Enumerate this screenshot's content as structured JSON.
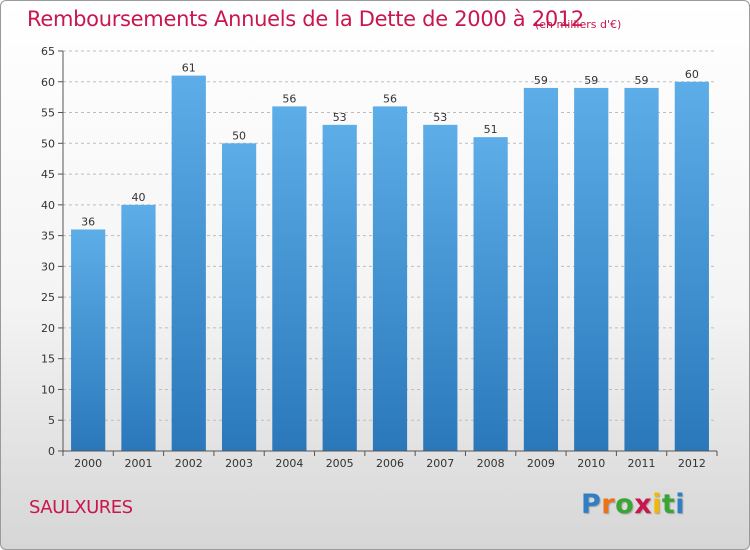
{
  "title": "Remboursements Annuels de la Dette de 2000 à 2012",
  "subtitle": "(en milliers d'€)",
  "commune": "SAULXURES",
  "logo": {
    "text": "Proxiti",
    "letter_colors": [
      "#2f7fc2",
      "#e8731b",
      "#3aa535",
      "#c8174f",
      "#f2b705",
      "#3aa535",
      "#2f7fc2"
    ]
  },
  "colors": {
    "bar_top": "#5dade8",
    "bar_bottom": "#2a78ba",
    "title": "#c8174f",
    "grid": "#bdbdbd",
    "axis_text": "#333333"
  },
  "chart_data": {
    "type": "bar",
    "categories": [
      "2000",
      "2001",
      "2002",
      "2003",
      "2004",
      "2005",
      "2006",
      "2007",
      "2008",
      "2009",
      "2010",
      "2011",
      "2012"
    ],
    "values": [
      36,
      40,
      61,
      50,
      56,
      53,
      56,
      53,
      51,
      59,
      59,
      59,
      60
    ],
    "ylim": [
      0,
      65
    ],
    "yticks": [
      0,
      5,
      10,
      15,
      20,
      25,
      30,
      35,
      40,
      45,
      50,
      55,
      60,
      65
    ],
    "grid": true,
    "data_labels": true
  }
}
